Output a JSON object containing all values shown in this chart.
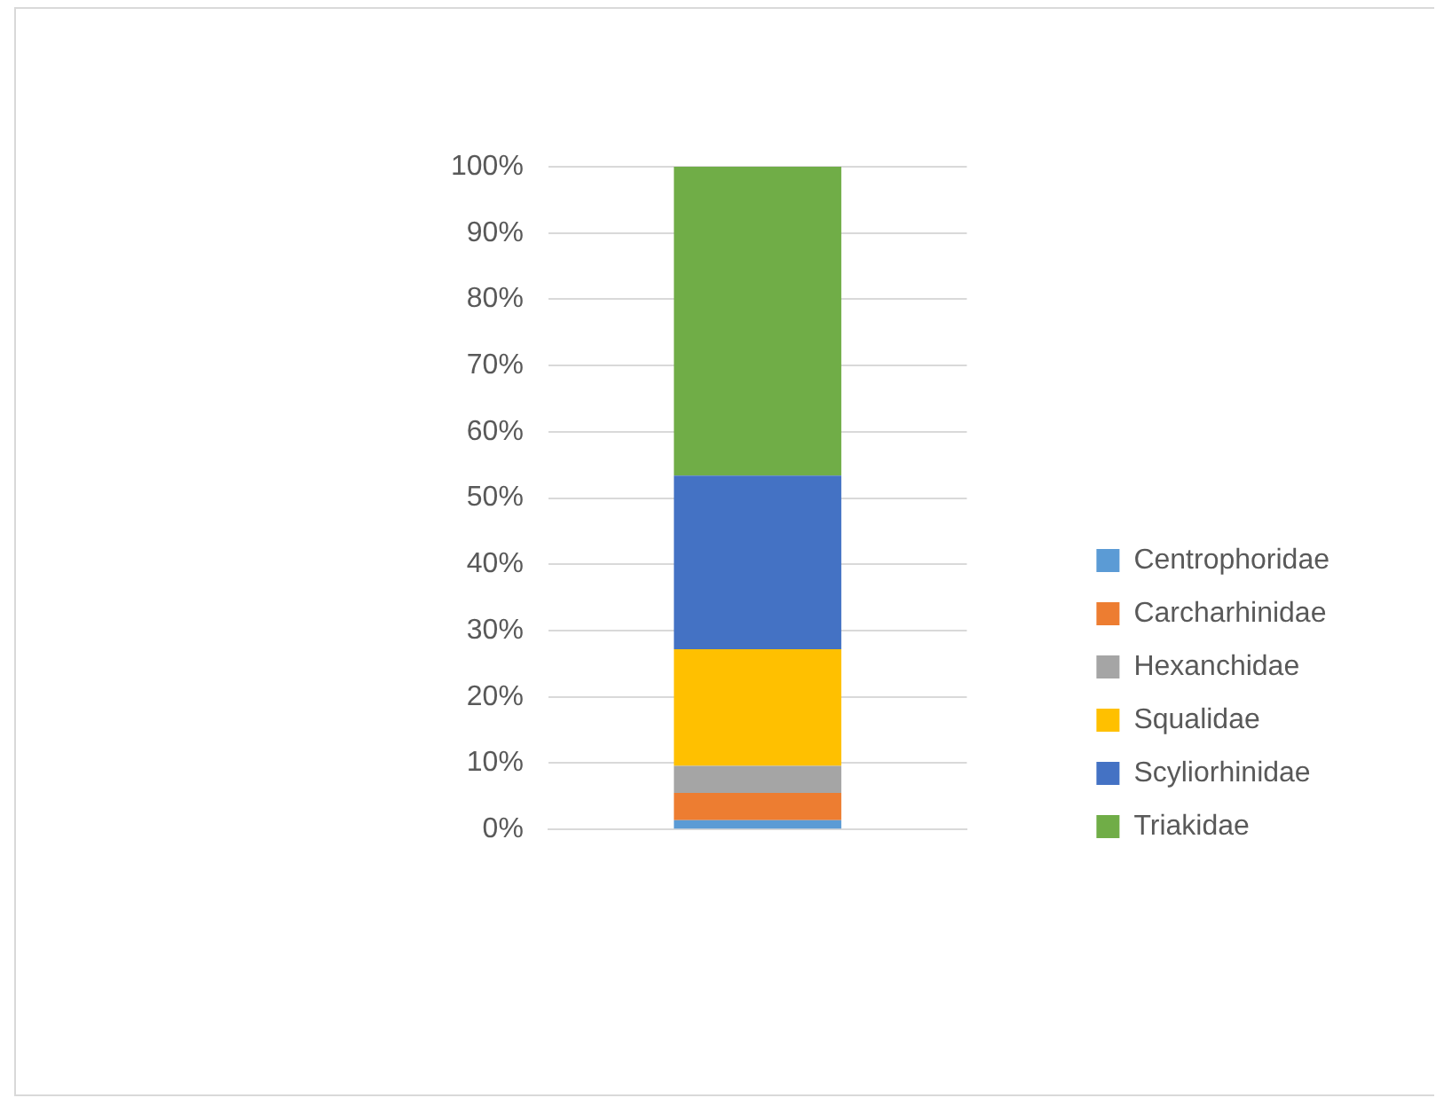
{
  "chart_data": {
    "type": "bar",
    "stacked": true,
    "categories": [
      null
    ],
    "series": [
      {
        "name": "Centrophoridae",
        "color": "#5b9bd5",
        "values": [
          1.4
        ]
      },
      {
        "name": "Carcharhinidae",
        "color": "#ed7d31",
        "values": [
          4.1
        ]
      },
      {
        "name": "Hexanchidae",
        "color": "#a5a5a5",
        "values": [
          4.1
        ]
      },
      {
        "name": "Squalidae",
        "color": "#ffc000",
        "values": [
          17.6
        ]
      },
      {
        "name": "Scyliorhinidae",
        "color": "#4472c4",
        "values": [
          26.2
        ]
      },
      {
        "name": "Triakidae",
        "color": "#70ad47",
        "values": [
          46.6
        ]
      }
    ],
    "ylim": [
      0,
      100
    ],
    "yticks": [
      {
        "value": 0,
        "label": "0%"
      },
      {
        "value": 10,
        "label": "10%"
      },
      {
        "value": 20,
        "label": "20%"
      },
      {
        "value": 30,
        "label": "30%"
      },
      {
        "value": 40,
        "label": "40%"
      },
      {
        "value": 50,
        "label": "50%"
      },
      {
        "value": 60,
        "label": "60%"
      },
      {
        "value": 70,
        "label": "70%"
      },
      {
        "value": 80,
        "label": "80%"
      },
      {
        "value": 90,
        "label": "90%"
      },
      {
        "value": 100,
        "label": "100%"
      }
    ],
    "grid": "y",
    "legend": "right"
  }
}
